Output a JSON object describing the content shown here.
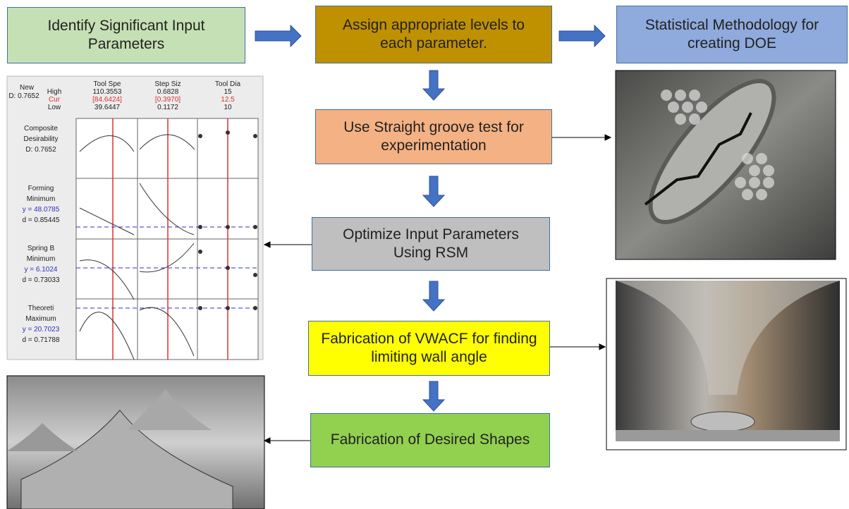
{
  "steps": [
    {
      "label": "Identify Significant Input Parameters"
    },
    {
      "label": "Assign appropriate levels to each parameter."
    },
    {
      "label": "Statistical Methodology for creating DOE"
    },
    {
      "label": "Use Straight groove test for experimentation"
    },
    {
      "label": "Optimize Input Parameters Using RSM"
    },
    {
      "label": "Fabrication of VWACF for finding limiting wall angle"
    },
    {
      "label": "Fabrication of Desired Shapes"
    }
  ],
  "optimization_plot": {
    "new": "New",
    "d": "D: 0.7652",
    "high": "High",
    "cur": "Cur",
    "low": "Low",
    "columns": [
      {
        "name": "Tool Spe",
        "high": "110.3553",
        "cur": "[84.6424]",
        "low": "39.6447"
      },
      {
        "name": "Step Siz",
        "high": "0.6828",
        "cur": "[0.3970]",
        "low": "0.1172"
      },
      {
        "name": "Tool Dia",
        "high": "15",
        "cur": "12.5",
        "low": "10"
      }
    ],
    "rows": [
      {
        "lines": [
          "Composite",
          "Desirability",
          "D: 0.7652"
        ]
      },
      {
        "lines": [
          "Forming",
          "Minimum",
          "y = 48.0785",
          "d = 0.85445"
        ]
      },
      {
        "lines": [
          "Spring B",
          "Minimum",
          "y = 6.1024",
          "d = 0.73033"
        ]
      },
      {
        "lines": [
          "Theoreti",
          "Maximum",
          "y = 20.7023",
          "d = 0.71788"
        ]
      }
    ]
  }
}
